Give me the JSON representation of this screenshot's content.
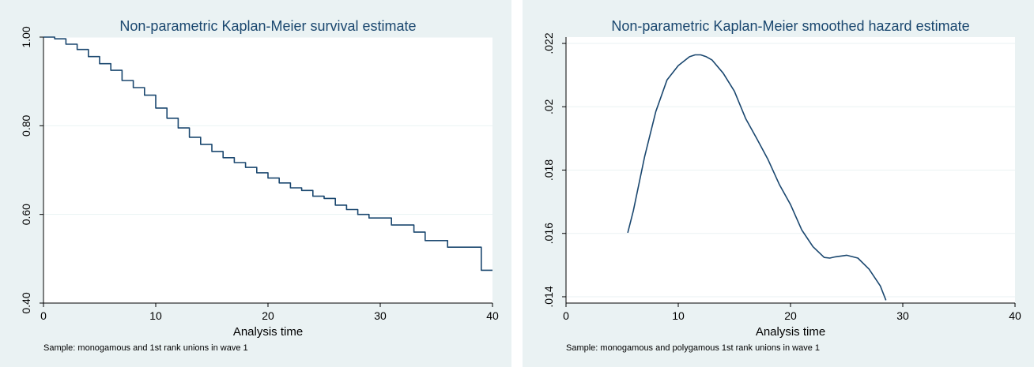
{
  "chart_data": [
    {
      "type": "line",
      "step": true,
      "title": "Non-parametric Kaplan-Meier survival estimate",
      "xlabel": "Analysis time",
      "ylabel": "",
      "note": "Sample: monogamous and 1st rank unions in wave 1",
      "xlim": [
        0,
        40
      ],
      "ylim": [
        0.4,
        1.0
      ],
      "xticks": [
        0,
        10,
        20,
        30,
        40
      ],
      "yticks": [
        0.4,
        0.6,
        0.8,
        1.0
      ],
      "ytick_labels": [
        "0.40",
        "0.60",
        "0.80",
        "1.00"
      ],
      "grid": true,
      "line_color": "#1a476f",
      "series": [
        {
          "x": [
            0,
            1,
            2,
            3,
            4,
            5,
            6,
            7,
            8,
            9,
            10,
            11,
            12,
            13,
            14,
            15,
            16,
            17,
            18,
            19,
            20,
            21,
            22,
            23,
            24,
            25,
            26,
            27,
            28,
            29,
            30,
            31,
            33,
            34,
            36,
            39,
            40
          ],
          "y": [
            1.0,
            0.996,
            0.984,
            0.972,
            0.956,
            0.94,
            0.925,
            0.902,
            0.886,
            0.869,
            0.84,
            0.817,
            0.795,
            0.774,
            0.758,
            0.742,
            0.728,
            0.717,
            0.706,
            0.694,
            0.682,
            0.671,
            0.66,
            0.654,
            0.641,
            0.636,
            0.621,
            0.611,
            0.6,
            0.592,
            0.592,
            0.576,
            0.56,
            0.541,
            0.526,
            0.474,
            0.474
          ]
        }
      ]
    },
    {
      "type": "line",
      "title": "Non-parametric Kaplan-Meier smoothed hazard estimate",
      "xlabel": "Analysis time",
      "ylabel": "",
      "note": "Sample: monogamous and polygamous 1st rank unions in wave 1",
      "xlim": [
        0,
        40
      ],
      "ylim": [
        0.0138,
        0.0222
      ],
      "xticks": [
        0,
        10,
        20,
        30,
        40
      ],
      "yticks": [
        0.014,
        0.016,
        0.018,
        0.02,
        0.022
      ],
      "ytick_labels": [
        ".014",
        ".016",
        ".018",
        ".02",
        ".022"
      ],
      "grid": true,
      "line_color": "#1a476f",
      "series": [
        {
          "x": [
            5.5,
            6,
            7,
            8,
            9,
            10,
            11,
            11.5,
            12,
            12.5,
            13,
            14,
            15,
            16,
            17,
            18,
            19,
            20,
            21,
            22,
            23,
            23.5,
            24,
            25,
            26,
            27,
            28,
            28.5
          ],
          "y": [
            0.01602,
            0.01672,
            0.01842,
            0.01985,
            0.02085,
            0.0213,
            0.02158,
            0.02164,
            0.02164,
            0.02158,
            0.02148,
            0.02106,
            0.02049,
            0.01963,
            0.01899,
            0.01833,
            0.01755,
            0.01691,
            0.01611,
            0.01558,
            0.01524,
            0.01522,
            0.01526,
            0.01531,
            0.01522,
            0.01487,
            0.01434,
            0.01389
          ]
        }
      ]
    }
  ]
}
